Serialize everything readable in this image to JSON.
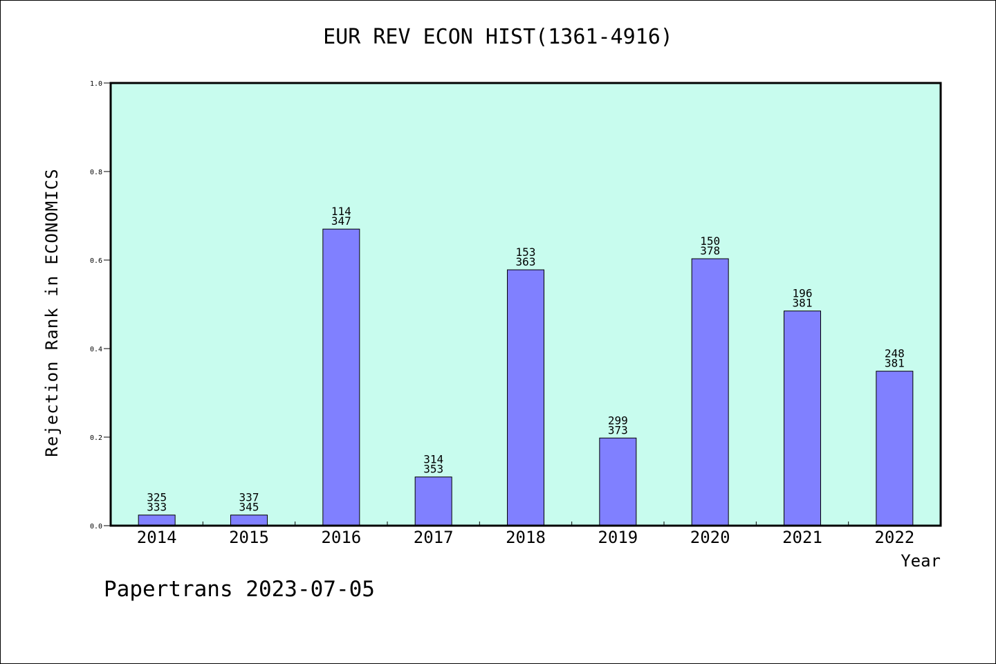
{
  "title": "EUR REV ECON HIST(1361-4916)",
  "ylabel": "Rejection Rank in ECONOMICS",
  "xlabel": "Year",
  "footer": "Papertrans 2023-07-05",
  "colors": {
    "plot_background": "#c8fcee",
    "bar_fill": "#8080ff",
    "bar_stroke": "#000000"
  },
  "chart_data": {
    "type": "bar",
    "title": "EUR REV ECON HIST(1361-4916)",
    "xlabel": "Year",
    "ylabel": "Rejection Rank in ECONOMICS",
    "categories": [
      "2014",
      "2015",
      "2016",
      "2017",
      "2018",
      "2019",
      "2020",
      "2021",
      "2022"
    ],
    "values": [
      0.024,
      0.024,
      0.67,
      0.11,
      0.578,
      0.198,
      0.603,
      0.485,
      0.349
    ],
    "label_top": [
      "325",
      "337",
      "114",
      "314",
      "153",
      "299",
      "150",
      "196",
      "248"
    ],
    "label_bottom": [
      "333",
      "345",
      "347",
      "353",
      "363",
      "373",
      "378",
      "381",
      "381"
    ],
    "ylim": [
      0,
      1.0
    ],
    "yticks": [
      "0.0",
      "0.2",
      "0.4",
      "0.6",
      "0.8",
      "1.0"
    ],
    "grid": false,
    "legend": "none"
  }
}
